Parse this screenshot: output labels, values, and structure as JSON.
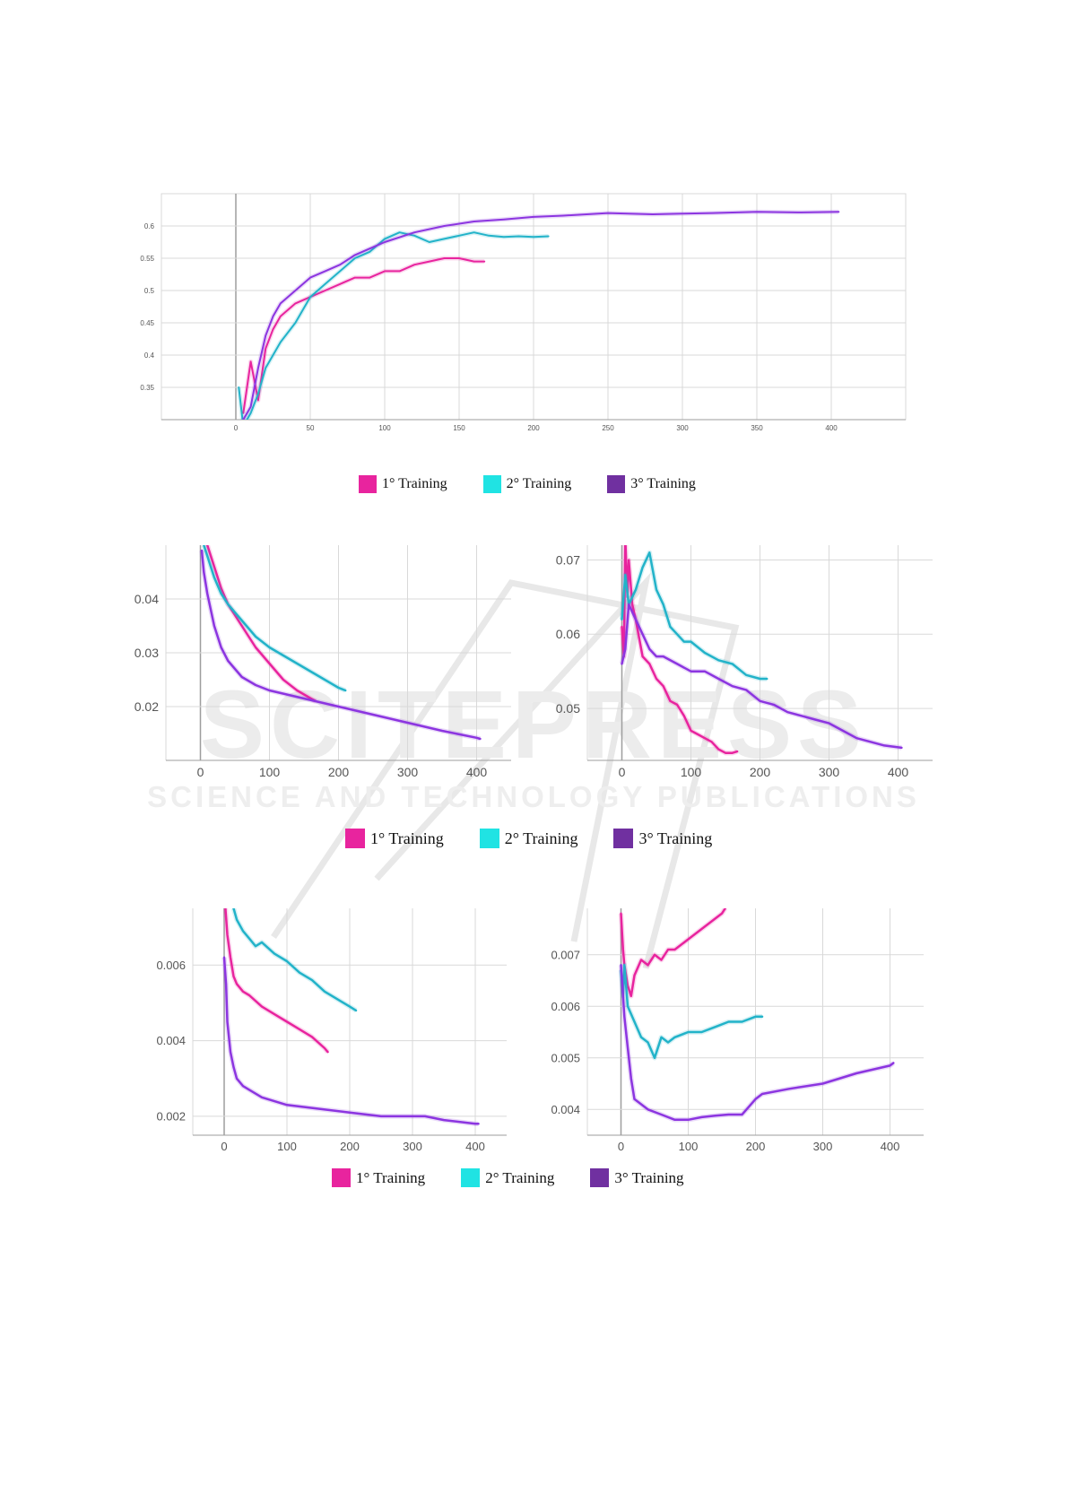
{
  "colors": {
    "c1": "#e8249e",
    "c2": "#22b3c9",
    "c3": "#8c35e0",
    "grid": "#d9d9d9",
    "axis": "#9e9e9e",
    "tick": "#555555"
  },
  "legend_swatch_colors": [
    "#e8249e",
    "#20e3e3",
    "#7030a0"
  ],
  "watermark": {
    "big": "SCITEPRESS",
    "small": "SCIENCE AND TECHNOLOGY PUBLICATIONS"
  },
  "legends": [
    {
      "items": [
        "1° Training",
        "2° Training",
        "3° Training"
      ]
    },
    {
      "items": [
        "1° Training",
        "2° Training",
        "3° Training"
      ]
    },
    {
      "items": [
        "1° Training",
        "2° Training",
        "3° Training"
      ]
    }
  ],
  "chart_data": [
    {
      "type": "line",
      "xlim": [
        -50,
        450
      ],
      "ylim": [
        0.3,
        0.65
      ],
      "grid": true,
      "xticks": [
        "0",
        "50",
        "100",
        "150",
        "200",
        "250",
        "300",
        "350",
        "400"
      ],
      "yticks": [
        "0.35",
        "0.4",
        "0.45",
        "0.5",
        "0.55",
        "0.6"
      ],
      "series": [
        {
          "name": "1° Training",
          "color": "#e8249e",
          "x": [
            5,
            10,
            15,
            20,
            25,
            30,
            40,
            50,
            60,
            70,
            80,
            90,
            100,
            110,
            120,
            130,
            140,
            150,
            160,
            167
          ],
          "y": [
            0.31,
            0.39,
            0.33,
            0.41,
            0.44,
            0.46,
            0.48,
            0.49,
            0.5,
            0.51,
            0.52,
            0.52,
            0.53,
            0.53,
            0.54,
            0.545,
            0.55,
            0.55,
            0.545,
            0.545
          ]
        },
        {
          "name": "2° Training",
          "color": "#22b3c9",
          "x": [
            2,
            5,
            10,
            15,
            20,
            25,
            30,
            40,
            50,
            60,
            70,
            80,
            90,
            100,
            110,
            120,
            130,
            140,
            150,
            160,
            170,
            180,
            190,
            200,
            210
          ],
          "y": [
            0.35,
            0.29,
            0.31,
            0.34,
            0.38,
            0.4,
            0.42,
            0.45,
            0.49,
            0.51,
            0.53,
            0.55,
            0.56,
            0.58,
            0.59,
            0.585,
            0.575,
            0.58,
            0.585,
            0.59,
            0.585,
            0.583,
            0.584,
            0.583,
            0.584
          ]
        },
        {
          "name": "3° Training",
          "color": "#8c35e0",
          "x": [
            5,
            10,
            15,
            20,
            25,
            30,
            40,
            50,
            60,
            70,
            80,
            90,
            100,
            120,
            140,
            160,
            180,
            200,
            220,
            250,
            280,
            300,
            320,
            350,
            380,
            405
          ],
          "y": [
            0.3,
            0.32,
            0.38,
            0.43,
            0.46,
            0.48,
            0.5,
            0.52,
            0.53,
            0.54,
            0.555,
            0.565,
            0.575,
            0.59,
            0.6,
            0.607,
            0.61,
            0.614,
            0.616,
            0.62,
            0.618,
            0.619,
            0.62,
            0.622,
            0.621,
            0.622
          ]
        }
      ]
    },
    {
      "type": "line",
      "xlim": [
        -50,
        450
      ],
      "ylim": [
        0.01,
        0.05
      ],
      "grid": true,
      "xticks": [
        "0",
        "100",
        "200",
        "300",
        "400"
      ],
      "yticks": [
        "0.02",
        "0.03",
        "0.04"
      ],
      "series": [
        {
          "name": "1° Training",
          "color": "#e8249e",
          "x": [
            5,
            10,
            20,
            30,
            40,
            60,
            80,
            100,
            120,
            140,
            160,
            167
          ],
          "y": [
            0.051,
            0.05,
            0.046,
            0.042,
            0.039,
            0.035,
            0.031,
            0.028,
            0.025,
            0.023,
            0.0215,
            0.021
          ]
        },
        {
          "name": "2° Training",
          "color": "#22b3c9",
          "x": [
            5,
            10,
            20,
            30,
            40,
            60,
            80,
            100,
            120,
            140,
            160,
            180,
            200,
            210
          ],
          "y": [
            0.05,
            0.048,
            0.044,
            0.041,
            0.039,
            0.036,
            0.033,
            0.031,
            0.0295,
            0.028,
            0.0265,
            0.025,
            0.0235,
            0.023
          ]
        },
        {
          "name": "3° Training",
          "color": "#8c35e0",
          "x": [
            2,
            5,
            10,
            20,
            30,
            40,
            60,
            80,
            100,
            150,
            200,
            250,
            300,
            350,
            400,
            405
          ],
          "y": [
            0.049,
            0.045,
            0.041,
            0.035,
            0.031,
            0.0285,
            0.0255,
            0.024,
            0.023,
            0.0215,
            0.02,
            0.0185,
            0.017,
            0.0155,
            0.0142,
            0.014
          ]
        }
      ]
    },
    {
      "type": "line",
      "xlim": [
        -50,
        450
      ],
      "ylim": [
        0.043,
        0.072
      ],
      "grid": true,
      "xticks": [
        "0",
        "100",
        "200",
        "300",
        "400"
      ],
      "yticks": [
        "0.05",
        "0.06",
        "0.07"
      ],
      "series": [
        {
          "name": "1° Training",
          "color": "#e8249e",
          "x": [
            0,
            3,
            5,
            8,
            10,
            15,
            20,
            30,
            40,
            50,
            60,
            70,
            80,
            90,
            100,
            110,
            120,
            130,
            140,
            150,
            160,
            167
          ],
          "y": [
            0.061,
            0.057,
            0.073,
            0.065,
            0.07,
            0.064,
            0.062,
            0.057,
            0.056,
            0.054,
            0.053,
            0.051,
            0.0505,
            0.049,
            0.047,
            0.0465,
            0.046,
            0.0455,
            0.0445,
            0.044,
            0.044,
            0.0442
          ]
        },
        {
          "name": "2° Training",
          "color": "#22b3c9",
          "x": [
            0,
            5,
            10,
            20,
            30,
            40,
            50,
            60,
            70,
            80,
            90,
            100,
            120,
            140,
            160,
            180,
            200,
            210
          ],
          "y": [
            0.062,
            0.068,
            0.064,
            0.066,
            0.069,
            0.071,
            0.066,
            0.064,
            0.061,
            0.06,
            0.059,
            0.059,
            0.0575,
            0.0565,
            0.056,
            0.0545,
            0.054,
            0.054
          ]
        },
        {
          "name": "3° Training",
          "color": "#8c35e0",
          "x": [
            0,
            5,
            10,
            20,
            30,
            40,
            50,
            60,
            80,
            100,
            120,
            140,
            160,
            180,
            200,
            220,
            240,
            260,
            280,
            300,
            320,
            340,
            360,
            380,
            405
          ],
          "y": [
            0.056,
            0.058,
            0.064,
            0.062,
            0.06,
            0.058,
            0.057,
            0.057,
            0.056,
            0.055,
            0.055,
            0.054,
            0.053,
            0.0525,
            0.051,
            0.0505,
            0.0495,
            0.049,
            0.0485,
            0.048,
            0.047,
            0.046,
            0.0455,
            0.045,
            0.0447
          ]
        }
      ]
    },
    {
      "type": "line",
      "xlim": [
        -50,
        450
      ],
      "ylim": [
        0.0015,
        0.0075
      ],
      "grid": true,
      "xticks": [
        "0",
        "100",
        "200",
        "300",
        "400"
      ],
      "yticks": [
        "0.002",
        "0.004",
        "0.006"
      ],
      "series": [
        {
          "name": "1° Training",
          "color": "#e8249e",
          "x": [
            2,
            5,
            10,
            15,
            20,
            30,
            40,
            60,
            80,
            100,
            120,
            140,
            160,
            165
          ],
          "y": [
            0.0075,
            0.0068,
            0.0062,
            0.0057,
            0.0055,
            0.0053,
            0.0052,
            0.0049,
            0.0047,
            0.0045,
            0.0043,
            0.0041,
            0.0038,
            0.0037
          ]
        },
        {
          "name": "2° Training",
          "color": "#22b3c9",
          "x": [
            15,
            20,
            30,
            40,
            50,
            60,
            80,
            100,
            120,
            140,
            160,
            180,
            200,
            210
          ],
          "y": [
            0.0075,
            0.0072,
            0.0069,
            0.0067,
            0.0065,
            0.0066,
            0.0063,
            0.0061,
            0.0058,
            0.0056,
            0.0053,
            0.0051,
            0.0049,
            0.0048
          ]
        },
        {
          "name": "3° Training",
          "color": "#8c35e0",
          "x": [
            0,
            3,
            5,
            10,
            15,
            20,
            30,
            40,
            60,
            80,
            100,
            150,
            200,
            250,
            300,
            320,
            350,
            400,
            405
          ],
          "y": [
            0.0062,
            0.0055,
            0.0045,
            0.0037,
            0.0033,
            0.003,
            0.0028,
            0.0027,
            0.0025,
            0.0024,
            0.0023,
            0.0022,
            0.0021,
            0.002,
            0.002,
            0.002,
            0.0019,
            0.0018,
            0.0018
          ]
        }
      ]
    },
    {
      "type": "line",
      "xlim": [
        -50,
        450
      ],
      "ylim": [
        0.0035,
        0.0079
      ],
      "grid": true,
      "xticks": [
        "0",
        "100",
        "200",
        "300",
        "400"
      ],
      "yticks": [
        "0.004",
        "0.005",
        "0.006",
        "0.007"
      ],
      "series": [
        {
          "name": "1° Training",
          "color": "#e8249e",
          "x": [
            0,
            3,
            5,
            10,
            15,
            20,
            30,
            40,
            50,
            60,
            70,
            80,
            90,
            100,
            110,
            120,
            130,
            140,
            150,
            155
          ],
          "y": [
            0.0078,
            0.0071,
            0.0068,
            0.0064,
            0.0062,
            0.0066,
            0.0069,
            0.0068,
            0.007,
            0.0069,
            0.0071,
            0.0071,
            0.0072,
            0.0073,
            0.0074,
            0.0075,
            0.0076,
            0.0077,
            0.0078,
            0.0079
          ]
        },
        {
          "name": "2° Training",
          "color": "#22b3c9",
          "x": [
            0,
            3,
            5,
            10,
            20,
            30,
            40,
            50,
            60,
            70,
            80,
            100,
            120,
            140,
            160,
            180,
            200,
            210
          ],
          "y": [
            0.0067,
            0.0062,
            0.0068,
            0.006,
            0.0057,
            0.0054,
            0.0053,
            0.005,
            0.0054,
            0.0053,
            0.0054,
            0.0055,
            0.0055,
            0.0056,
            0.0057,
            0.0057,
            0.0058,
            0.0058
          ]
        },
        {
          "name": "3° Training",
          "color": "#8c35e0",
          "x": [
            0,
            3,
            5,
            10,
            15,
            20,
            30,
            40,
            60,
            80,
            100,
            120,
            140,
            160,
            180,
            190,
            200,
            210,
            250,
            300,
            350,
            400,
            405
          ],
          "y": [
            0.0068,
            0.0062,
            0.0058,
            0.0052,
            0.0046,
            0.0042,
            0.0041,
            0.004,
            0.0039,
            0.0038,
            0.0038,
            0.00385,
            0.00388,
            0.0039,
            0.0039,
            0.00405,
            0.0042,
            0.0043,
            0.0044,
            0.0045,
            0.0047,
            0.00485,
            0.0049
          ]
        }
      ]
    }
  ]
}
